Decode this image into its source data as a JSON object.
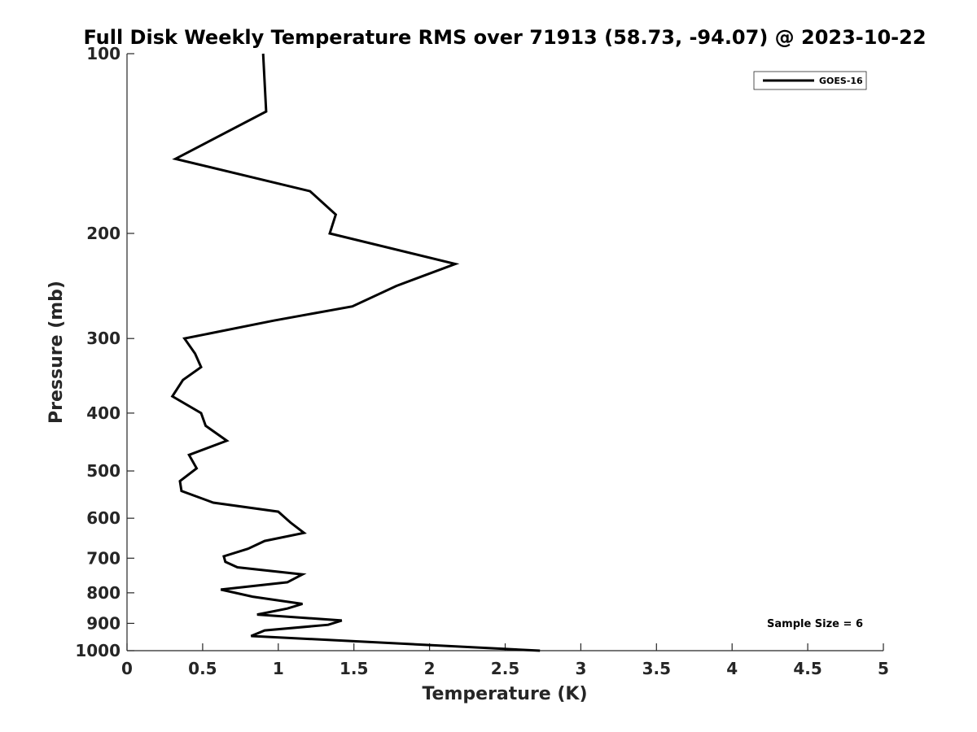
{
  "chart_data": {
    "type": "line",
    "title": "Full Disk Weekly Temperature RMS over 71913 (58.73, -94.07) @ 2023-10-22",
    "xlabel": "Temperature (K)",
    "ylabel": "Pressure (mb)",
    "xlim": [
      0,
      5
    ],
    "ylim": [
      100,
      1000
    ],
    "y_scale": "log",
    "y_reversed": true,
    "x_ticks": [
      "0",
      "0.5",
      "1",
      "1.5",
      "2",
      "2.5",
      "3",
      "3.5",
      "4",
      "4.5",
      "5"
    ],
    "y_ticks": [
      "100",
      "200",
      "300",
      "400",
      "500",
      "600",
      "700",
      "800",
      "900",
      "1000"
    ],
    "grid": false,
    "legend_position": "top-right",
    "annotation": "Sample Size = 6",
    "series": [
      {
        "name": "GOES-16",
        "color": "#000000",
        "x": [
          0.9,
          0.92,
          0.32,
          1.21,
          1.38,
          1.34,
          2.17,
          1.78,
          1.49,
          0.97,
          0.38,
          0.45,
          0.49,
          0.37,
          0.3,
          0.49,
          0.52,
          0.66,
          0.41,
          0.46,
          0.35,
          0.36,
          0.57,
          1.0,
          1.08,
          1.17,
          0.91,
          0.8,
          0.64,
          0.65,
          0.73,
          1.16,
          1.06,
          0.62,
          0.83,
          1.16,
          1.06,
          0.86,
          1.42,
          1.33,
          0.91,
          0.82,
          2.73
        ],
        "y": [
          100,
          125,
          150,
          170,
          186,
          200,
          225,
          245,
          265,
          280,
          300,
          318,
          335,
          352,
          375,
          400,
          420,
          445,
          470,
          495,
          520,
          540,
          565,
          585,
          610,
          635,
          655,
          675,
          695,
          710,
          725,
          745,
          768,
          790,
          812,
          835,
          850,
          870,
          890,
          905,
          925,
          945,
          1000
        ]
      }
    ]
  }
}
